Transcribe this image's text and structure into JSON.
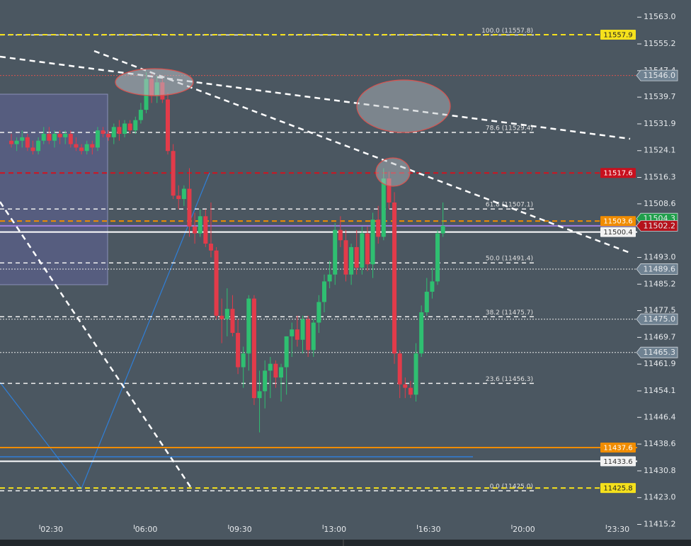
{
  "chart_data": {
    "type": "candlestick",
    "xlim": [
      0.58,
      24.2
    ],
    "ylim": [
      11412.0,
      11568.0
    ],
    "xticks": [
      {
        "value": 2.5,
        "label": "02:30"
      },
      {
        "value": 6,
        "label": "06:00"
      },
      {
        "value": 9.5,
        "label": "09:30"
      },
      {
        "value": 13,
        "label": "13:00"
      },
      {
        "value": 16.5,
        "label": "16:30"
      },
      {
        "value": 20,
        "label": "20:00"
      },
      {
        "value": 23.5,
        "label": "23:30"
      }
    ],
    "yticks": [
      {
        "value": 11563.0,
        "label": "11563.0"
      },
      11555.2,
      11547.4,
      11539.7,
      11531.9,
      11524.1,
      11516.3,
      11508.6,
      {
        "value": 11493.0,
        "label": "11493.0"
      },
      11485.2,
      11477.5,
      11469.7,
      11461.9,
      11454.1,
      11446.4,
      11438.6,
      11430.8,
      {
        "value": 11423.0,
        "label": "11423.0"
      },
      11415.2
    ],
    "up_color": "#2fbf71",
    "down_color": "#e23b4a",
    "x": [
      1.0,
      1.2,
      1.4,
      1.6,
      1.8,
      2.0,
      2.2,
      2.4,
      2.6,
      2.8,
      3.0,
      3.2,
      3.4,
      3.6,
      3.8,
      4.0,
      4.2,
      4.4,
      4.6,
      4.8,
      5.0,
      5.2,
      5.4,
      5.6,
      5.8,
      6.0,
      6.2,
      6.4,
      6.6,
      6.8,
      7.0,
      7.2,
      7.4,
      7.6,
      7.8,
      8.0,
      8.2,
      8.4,
      8.6,
      8.8,
      9.0,
      9.2,
      9.4,
      9.6,
      9.8,
      10.0,
      10.2,
      10.4,
      10.6,
      10.8,
      11.0,
      11.2,
      11.4,
      11.6,
      11.8,
      12.0,
      12.2,
      12.4,
      12.6,
      12.8,
      13.0,
      13.2,
      13.4,
      13.6,
      13.8,
      14.0,
      14.2,
      14.4,
      14.6,
      14.8,
      15.0,
      15.2,
      15.4,
      15.6,
      15.8,
      16.0,
      16.2,
      16.4,
      16.6,
      16.8,
      17.0
    ],
    "open": [
      11527,
      11526,
      11527,
      11528,
      11525,
      11524,
      11527,
      11529,
      11527,
      11529,
      11528,
      11529,
      11526,
      11525,
      11524,
      11526,
      11525,
      11530,
      11529,
      11528,
      11531,
      11529,
      11532,
      11530,
      11533,
      11536,
      11545,
      11540,
      11544,
      11539,
      11524,
      11511,
      11510,
      11513,
      11502,
      11500,
      11505,
      11497,
      11495,
      11476,
      11475,
      11478,
      11471,
      11461,
      11465,
      11481,
      11452,
      11454,
      11460,
      11462,
      11458,
      11461,
      11470,
      11472,
      11469,
      11475,
      11466,
      11474,
      11480,
      11486,
      11488,
      11501,
      11498,
      11488,
      11496,
      11490,
      11500,
      11491,
      11504,
      11499,
      11516,
      11509,
      11465,
      11456,
      11455,
      11453,
      11465,
      11477,
      11483,
      11486,
      11500
    ],
    "high": [
      11529,
      11528,
      11530,
      11529,
      11527,
      11528,
      11531,
      11531,
      11530,
      11530,
      11530,
      11530,
      11528,
      11526,
      11527,
      11527,
      11531,
      11531,
      11530,
      11532,
      11533,
      11533,
      11533,
      11534,
      11538,
      11547,
      11547,
      11546,
      11545,
      11541,
      11526,
      11514,
      11514,
      11519,
      11506,
      11507,
      11507,
      11509,
      11496,
      11481,
      11484,
      11482,
      11475,
      11467,
      11482,
      11482,
      11460,
      11463,
      11464,
      11463,
      11462,
      11470,
      11474,
      11476,
      11476,
      11476,
      11475,
      11482,
      11488,
      11492,
      11503,
      11505,
      11501,
      11497,
      11501,
      11502,
      11502,
      11506,
      11508,
      11519,
      11518,
      11512,
      11466,
      11458,
      11457,
      11468,
      11479,
      11487,
      11490,
      11501,
      11509
    ],
    "low": [
      11525,
      11524,
      11525,
      11524,
      11523,
      11523,
      11526,
      11526,
      11525,
      11526,
      11526,
      11525,
      11524,
      11523,
      11523,
      11523,
      11524,
      11528,
      11527,
      11526,
      11527,
      11528,
      11529,
      11529,
      11532,
      11535,
      11538,
      11538,
      11538,
      11523,
      11510,
      11507,
      11508,
      11499,
      11497,
      11499,
      11496,
      11493,
      11475,
      11468,
      11470,
      11470,
      11459,
      11455,
      11460,
      11450,
      11442,
      11449,
      11452,
      11455,
      11451,
      11453,
      11464,
      11467,
      11465,
      11464,
      11464,
      11471,
      11477,
      11484,
      11485,
      11496,
      11486,
      11485,
      11488,
      11488,
      11489,
      11487,
      11497,
      11498,
      11507,
      11462,
      11452,
      11452,
      11452,
      11451,
      11464,
      11476,
      11481,
      11485,
      11499
    ],
    "close": [
      11526,
      11527,
      11528,
      11525,
      11524,
      11527,
      11529,
      11527,
      11529,
      11528,
      11529,
      11526,
      11525,
      11524,
      11526,
      11525,
      11530,
      11529,
      11528,
      11531,
      11529,
      11532,
      11530,
      11533,
      11536,
      11545,
      11540,
      11544,
      11539,
      11524,
      11511,
      11510,
      11513,
      11502,
      11500,
      11505,
      11497,
      11495,
      11476,
      11475,
      11478,
      11471,
      11461,
      11465,
      11481,
      11452,
      11454,
      11460,
      11462,
      11458,
      11461,
      11470,
      11472,
      11469,
      11475,
      11466,
      11474,
      11480,
      11486,
      11488,
      11501,
      11498,
      11488,
      11496,
      11490,
      11500,
      11491,
      11504,
      11499,
      11516,
      11509,
      11465,
      11456,
      11455,
      11453,
      11465,
      11477,
      11483,
      11486,
      11500,
      11502.2
    ],
    "fib_levels": [
      {
        "value": 11557.8,
        "label": "100.0 (11557.8)"
      },
      {
        "value": 11529.4,
        "label": "78.6 (11529.4)"
      },
      {
        "value": 11507.1,
        "label": "61.8 (11507.1)"
      },
      {
        "value": 11491.4,
        "label": "50.0 (11491.4)"
      },
      {
        "value": 11475.7,
        "label": "38.2 (11475.7)"
      },
      {
        "value": 11456.3,
        "label": "23.6 (11456.3)"
      },
      {
        "value": 11425.0,
        "label": "0.0 (11425.0)"
      }
    ],
    "levels": [
      {
        "value": 11557.9,
        "label": "11557.9",
        "color": "#f5e11c",
        "text_color": "#222222",
        "line_color": "#f5e11c",
        "line_style": "dashed",
        "tag": "box"
      },
      {
        "value": 11546.0,
        "label": "11546.0",
        "color": "#6f8292",
        "text_color": "#ffffff",
        "line_color": "#d9534f",
        "line_style": "dotted",
        "tag": "arrow"
      },
      {
        "value": 11517.6,
        "label": "11517.6",
        "color": "#c8101e",
        "text_color": "#ffffff",
        "line_color": "#d0131f",
        "line_style": "dashed",
        "tag": "box"
      },
      {
        "value": 11504.3,
        "label": "11504.3",
        "color": "#1f9e4a",
        "text_color": "#ffffff",
        "line_color": "#1f9e4a",
        "line_style": "none",
        "tag": "arrow"
      },
      {
        "value": 11503.6,
        "label": "11503.6",
        "color": "#f08c00",
        "text_color": "#ffffff",
        "line_color": "#f08c00",
        "line_style": "dashed",
        "tag": "box"
      },
      {
        "value": 11502.2,
        "label": "11502.2",
        "color": "#b5121b",
        "text_color": "#ffffff",
        "line_color": "#a080e0",
        "line_style": "solid",
        "tag": "arrow"
      },
      {
        "value": 11500.4,
        "label": "11500.4",
        "color": "#f2f2f2",
        "text_color": "#333333",
        "line_color": "#ffffff",
        "line_style": "solid",
        "tag": "box"
      },
      {
        "value": 11489.6,
        "label": "11489.6",
        "color": "#6f8292",
        "text_color": "#ffffff",
        "line_color": "#e8e8e8",
        "line_style": "dotted",
        "tag": "arrow"
      },
      {
        "value": 11475.0,
        "label": "11475.0",
        "color": "#6f8292",
        "text_color": "#ffffff",
        "line_color": "#e8e8e8",
        "line_style": "dotted",
        "tag": "arrow"
      },
      {
        "value": 11465.3,
        "label": "11465.3",
        "color": "#6f8292",
        "text_color": "#ffffff",
        "line_color": "#e8e8e8",
        "line_style": "dotted",
        "tag": "arrow"
      },
      {
        "value": 11437.6,
        "label": "11437.6",
        "color": "#f08c00",
        "text_color": "#ffffff",
        "line_color": "#f08c00",
        "line_style": "solid",
        "tag": "box"
      },
      {
        "value": 11433.6,
        "label": "11433.6",
        "color": "#f2f2f2",
        "text_color": "#333333",
        "line_color": "#ffffff",
        "line_style": "solid",
        "tag": "box"
      },
      {
        "value": 11425.8,
        "label": "11425.8",
        "color": "#f5e11c",
        "text_color": "#222222",
        "line_color": "#f5e11c",
        "line_style": "dashed",
        "tag": "box"
      }
    ]
  }
}
